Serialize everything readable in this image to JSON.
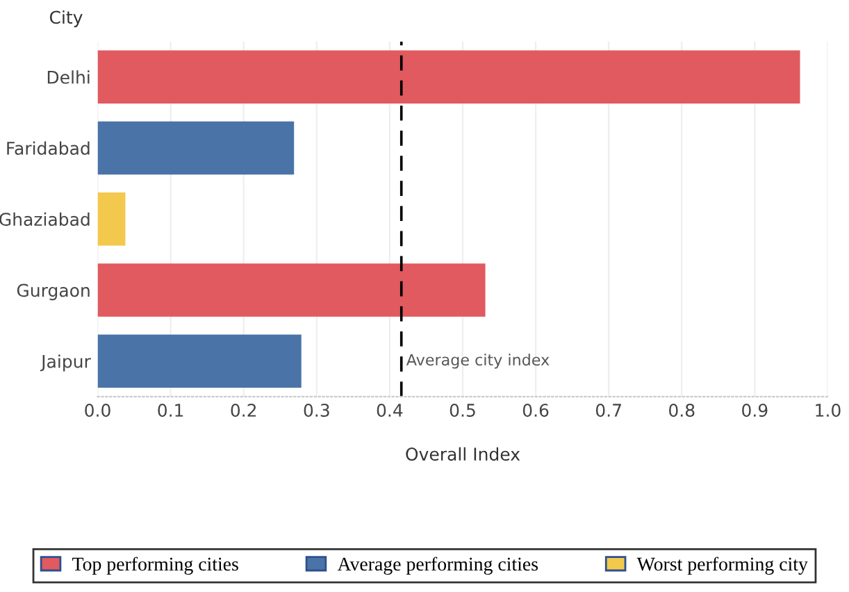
{
  "chart_data": {
    "type": "bar",
    "orientation": "horizontal",
    "ylabel": "City",
    "xlabel": "Overall Index",
    "categories": [
      "Delhi",
      "Faridabad",
      "Ghaziabad",
      "Gurgaon",
      "Jaipur"
    ],
    "series": [
      {
        "name": "Top performing cities",
        "color": "#e05a5f",
        "values": [
          0.962,
          null,
          null,
          0.531,
          null
        ]
      },
      {
        "name": "Average performing cities",
        "color": "#4a74a8",
        "values": [
          null,
          0.269,
          null,
          null,
          0.279
        ]
      },
      {
        "name": "Worst performing city",
        "color": "#f2c94c",
        "values": [
          null,
          null,
          0.038,
          null,
          null
        ]
      }
    ],
    "xlim": [
      0,
      1.0
    ],
    "xticks": [
      {
        "value": 0,
        "label": "0.0"
      },
      0.1,
      0.2,
      0.3,
      0.4,
      0.5,
      0.6,
      0.7,
      0.8,
      0.9,
      {
        "value": 1,
        "label": "1.0"
      }
    ],
    "ref_lines": [
      {
        "axis": "x",
        "value": 0.416,
        "label": "Average city index",
        "color": "#000000",
        "line_style": "dashed"
      }
    ],
    "grid": "x",
    "legend": "bottom"
  }
}
